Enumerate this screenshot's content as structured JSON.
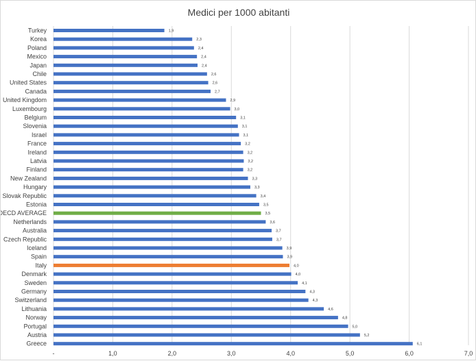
{
  "chart_data": {
    "type": "bar",
    "orientation": "horizontal",
    "title": "Medici per 1000 abitanti",
    "xlabel": "",
    "ylabel": "",
    "xlim": [
      0,
      7
    ],
    "x_ticks": [
      "-",
      "1,0",
      "2,0",
      "3,0",
      "4,0",
      "5,0",
      "6,0",
      "7,0"
    ],
    "grid": "vertical",
    "categories": [
      "Turkey",
      "Korea",
      "Poland",
      "Mexico",
      "Japan",
      "Chile",
      "United States",
      "Canada",
      "United Kingdom",
      "Luxembourg",
      "Belgium",
      "Slovenia",
      "Israel",
      "France",
      "Ireland",
      "Latvia",
      "Finland",
      "New Zealand",
      "Hungary",
      "Slovak Republic",
      "Estonia",
      "OECD AVERAGE",
      "Netherlands",
      "Australia",
      "Czech Republic",
      "Iceland",
      "Spain",
      "Italy",
      "Denmark",
      "Sweden",
      "Germany",
      "Switzerland",
      "Lithuania",
      "Norway",
      "Portugal",
      "Austria",
      "Greece"
    ],
    "values": [
      1.87,
      2.34,
      2.37,
      2.42,
      2.43,
      2.59,
      2.61,
      2.65,
      2.91,
      2.98,
      3.08,
      3.11,
      3.13,
      3.16,
      3.2,
      3.21,
      3.2,
      3.28,
      3.32,
      3.42,
      3.47,
      3.5,
      3.58,
      3.68,
      3.69,
      3.86,
      3.87,
      3.98,
      4.01,
      4.12,
      4.25,
      4.3,
      4.56,
      4.8,
      4.97,
      5.17,
      6.06
    ],
    "labels": [
      "1,9",
      "2,3",
      "2,4",
      "2,4",
      "2,4",
      "2,6",
      "2,6",
      "2,7",
      "2,9",
      "3,0",
      "3,1",
      "3,1",
      "3,1",
      "3,2",
      "3,2",
      "3,2",
      "3,2",
      "3,3",
      "3,3",
      "3,4",
      "3,5",
      "3,5",
      "3,6",
      "3,7",
      "3,7",
      "3,9",
      "3,9",
      "4,0",
      "4,0",
      "4,1",
      "4,3",
      "4,3",
      "4,6",
      "4,8",
      "5,0",
      "5,2",
      "6,1"
    ],
    "colors": {
      "default": "#4472c4",
      "OECD AVERAGE": "#70ad47",
      "Italy": "#ed7d31"
    }
  }
}
